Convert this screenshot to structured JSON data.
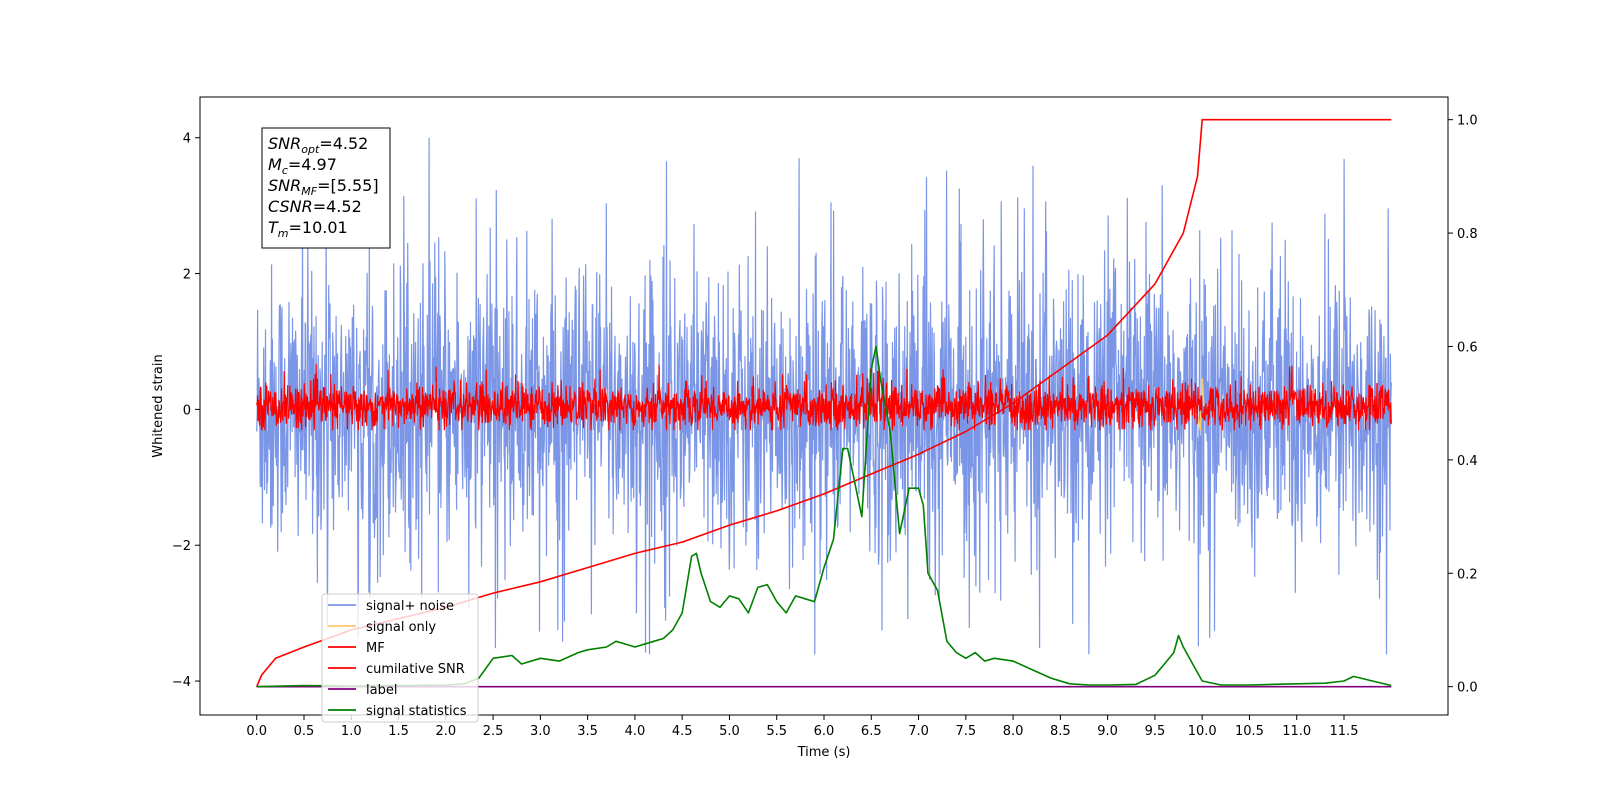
{
  "chart_data": {
    "type": "line",
    "xlabel": "Time (s)",
    "ylabel": "Whitened strain",
    "xlim": [
      -0.6,
      12.6
    ],
    "ylim": [
      -4.5,
      4.6
    ],
    "ylim_right": [
      -0.05,
      1.04
    ],
    "x_ticks": [
      "0.0",
      "0.5",
      "1.0",
      "1.5",
      "2.0",
      "2.5",
      "3.0",
      "3.5",
      "4.0",
      "4.5",
      "5.0",
      "5.5",
      "6.0",
      "6.5",
      "7.0",
      "7.5",
      "8.0",
      "8.5",
      "9.0",
      "9.5",
      "10.0",
      "10.5",
      "11.0",
      "11.5"
    ],
    "y_ticks_left": [
      "4",
      "2",
      "0",
      "−2",
      "−4"
    ],
    "y_ticks_right": [
      "1.0",
      "0.8",
      "0.6",
      "0.4",
      "0.2",
      "0.0"
    ],
    "grid": false,
    "legend_position": "lower-left",
    "annotation": [
      {
        "base": "SNR",
        "sub": "opt",
        "value": "=4.52"
      },
      {
        "base": "M",
        "sub": "c",
        "value": "=4.97"
      },
      {
        "base": "SNR",
        "sub": "MF",
        "value": "=[5.55]"
      },
      {
        "base": "CSNR",
        "sub": "",
        "value": "=4.52"
      },
      {
        "base": "T",
        "sub": "m",
        "value": "=10.01"
      }
    ],
    "series": [
      {
        "name": "signal+ noise",
        "axis": "left",
        "color": "#7b96e6",
        "kind": "noise",
        "x_range": [
          0,
          12
        ],
        "y_mean": 0,
        "y_std": 1.05,
        "y_extent": [
          -3.6,
          4.15
        ]
      },
      {
        "name": "signal only",
        "axis": "left",
        "color": "#ffc86e",
        "kind": "chirp",
        "x": [
          9.9,
          9.95,
          9.98,
          10.0,
          10.02
        ],
        "y": [
          0.0,
          -0.1,
          -0.3,
          0.45,
          0.0
        ]
      },
      {
        "name": "MF",
        "axis": "left",
        "color": "#ff0000",
        "kind": "noise",
        "x_range": [
          0,
          12
        ],
        "y_mean": 0.05,
        "y_std": 0.16,
        "y_extent": [
          -0.3,
          0.8
        ]
      },
      {
        "name": "cumilative SNR",
        "axis": "right",
        "color": "#ff0000",
        "kind": "line",
        "x": [
          0.0,
          0.05,
          0.2,
          0.5,
          1.0,
          1.5,
          2.0,
          2.5,
          3.0,
          3.5,
          4.0,
          4.5,
          5.0,
          5.5,
          6.0,
          6.5,
          7.0,
          7.5,
          8.0,
          8.5,
          9.0,
          9.5,
          9.8,
          9.95,
          10.0,
          10.01,
          12.0
        ],
        "y": [
          0.0,
          0.02,
          0.05,
          0.07,
          0.1,
          0.12,
          0.14,
          0.165,
          0.185,
          0.21,
          0.235,
          0.255,
          0.285,
          0.31,
          0.34,
          0.375,
          0.41,
          0.45,
          0.5,
          0.56,
          0.62,
          0.71,
          0.8,
          0.9,
          1.0,
          1.0,
          1.0
        ]
      },
      {
        "name": "label",
        "axis": "right",
        "color": "#800080",
        "kind": "line",
        "x": [
          0.0,
          12.0
        ],
        "y": [
          0.0,
          0.0
        ]
      },
      {
        "name": "signal statistics",
        "axis": "right",
        "color": "#008000",
        "kind": "line",
        "x": [
          0.0,
          0.5,
          1.0,
          1.5,
          2.0,
          2.2,
          2.35,
          2.5,
          2.7,
          2.8,
          3.0,
          3.2,
          3.4,
          3.5,
          3.7,
          3.8,
          3.9,
          4.0,
          4.2,
          4.3,
          4.4,
          4.5,
          4.6,
          4.65,
          4.7,
          4.8,
          4.9,
          5.0,
          5.1,
          5.2,
          5.3,
          5.4,
          5.5,
          5.6,
          5.7,
          5.8,
          5.9,
          6.0,
          6.1,
          6.2,
          6.25,
          6.3,
          6.4,
          6.5,
          6.55,
          6.6,
          6.7,
          6.8,
          6.9,
          7.0,
          7.05,
          7.1,
          7.2,
          7.3,
          7.4,
          7.5,
          7.6,
          7.7,
          7.8,
          8.0,
          8.2,
          8.4,
          8.6,
          8.8,
          9.0,
          9.3,
          9.5,
          9.6,
          9.7,
          9.75,
          9.8,
          9.9,
          10.0,
          10.2,
          10.5,
          11.0,
          11.3,
          11.5,
          11.6,
          11.8,
          12.0
        ],
        "y": [
          0.0,
          0.002,
          0.001,
          0.002,
          0.003,
          0.005,
          0.015,
          0.05,
          0.055,
          0.04,
          0.05,
          0.045,
          0.06,
          0.065,
          0.07,
          0.08,
          0.075,
          0.07,
          0.08,
          0.085,
          0.1,
          0.13,
          0.23,
          0.235,
          0.2,
          0.15,
          0.14,
          0.16,
          0.155,
          0.13,
          0.175,
          0.18,
          0.15,
          0.13,
          0.16,
          0.155,
          0.15,
          0.21,
          0.26,
          0.42,
          0.42,
          0.38,
          0.3,
          0.56,
          0.6,
          0.54,
          0.45,
          0.27,
          0.35,
          0.35,
          0.32,
          0.2,
          0.17,
          0.08,
          0.06,
          0.05,
          0.06,
          0.045,
          0.05,
          0.045,
          0.03,
          0.015,
          0.005,
          0.003,
          0.003,
          0.004,
          0.02,
          0.04,
          0.06,
          0.09,
          0.07,
          0.04,
          0.01,
          0.003,
          0.003,
          0.005,
          0.006,
          0.01,
          0.018,
          0.01,
          0.002
        ]
      }
    ]
  }
}
